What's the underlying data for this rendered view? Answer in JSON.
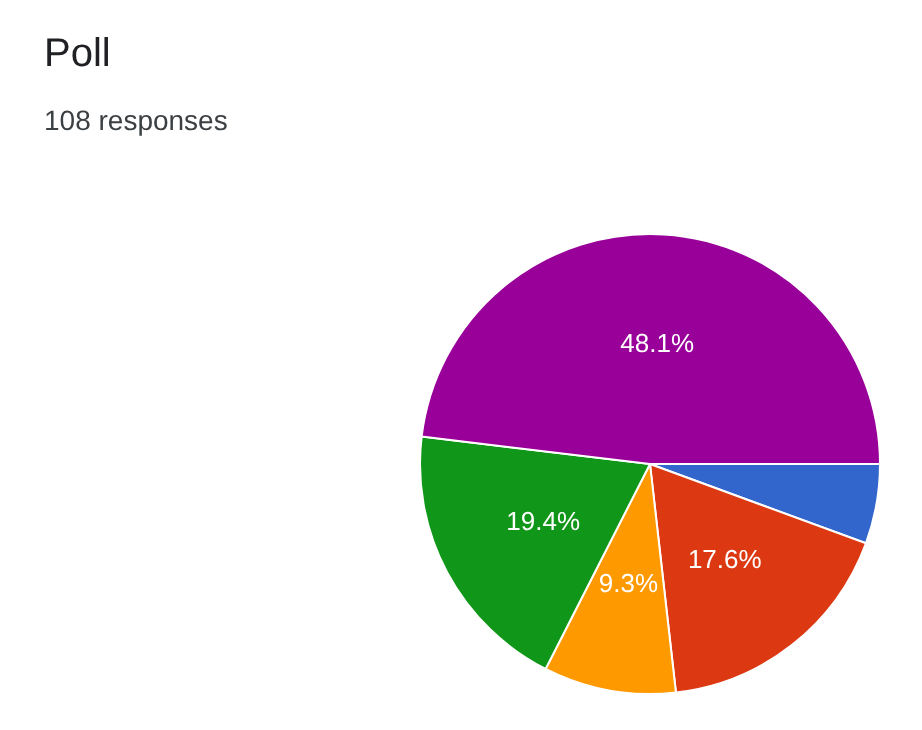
{
  "chart_data": {
    "type": "pie",
    "title": "Poll",
    "subtitle": "108 responses",
    "categories": [
      null,
      null,
      null,
      null,
      null
    ],
    "values": [
      5.6,
      17.6,
      9.3,
      19.4,
      48.1
    ],
    "value_labels": [
      null,
      "17.6%",
      "9.3%",
      "19.4%",
      "48.1%"
    ],
    "colors": [
      "#3366cc",
      "#dc3912",
      "#ff9900",
      "#109618",
      "#990099"
    ]
  }
}
